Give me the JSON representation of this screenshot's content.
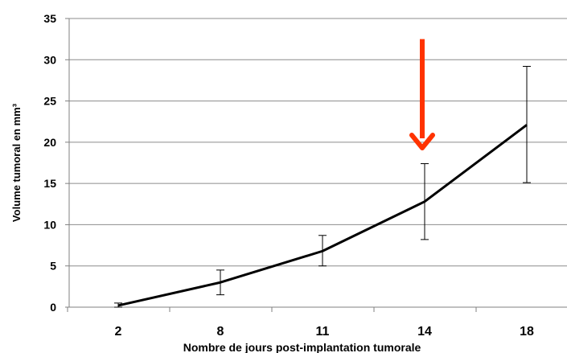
{
  "chart_data": {
    "type": "line",
    "title": "",
    "xlabel": "Nombre de jours post-implantation  tumorale",
    "ylabel": "Volume tumoral en mm³",
    "categories": [
      "2",
      "8",
      "11",
      "14",
      "18"
    ],
    "series": [
      {
        "values": [
          0.2,
          3.0,
          6.8,
          12.8,
          22.1
        ],
        "error_low": [
          0.0,
          1.5,
          5.0,
          8.2,
          15.1
        ],
        "error_high": [
          0.5,
          4.5,
          8.7,
          17.4,
          29.2
        ],
        "color": "#000000"
      }
    ],
    "ylim": [
      0,
      35
    ],
    "yticks": [
      0,
      5,
      10,
      15,
      20,
      25,
      30,
      35
    ],
    "grid": "horizontal",
    "legend": "none",
    "annotation": {
      "type": "arrow",
      "category": "14",
      "from_value": 32.5,
      "to_value": 19.3,
      "color": "#ff3300"
    }
  }
}
